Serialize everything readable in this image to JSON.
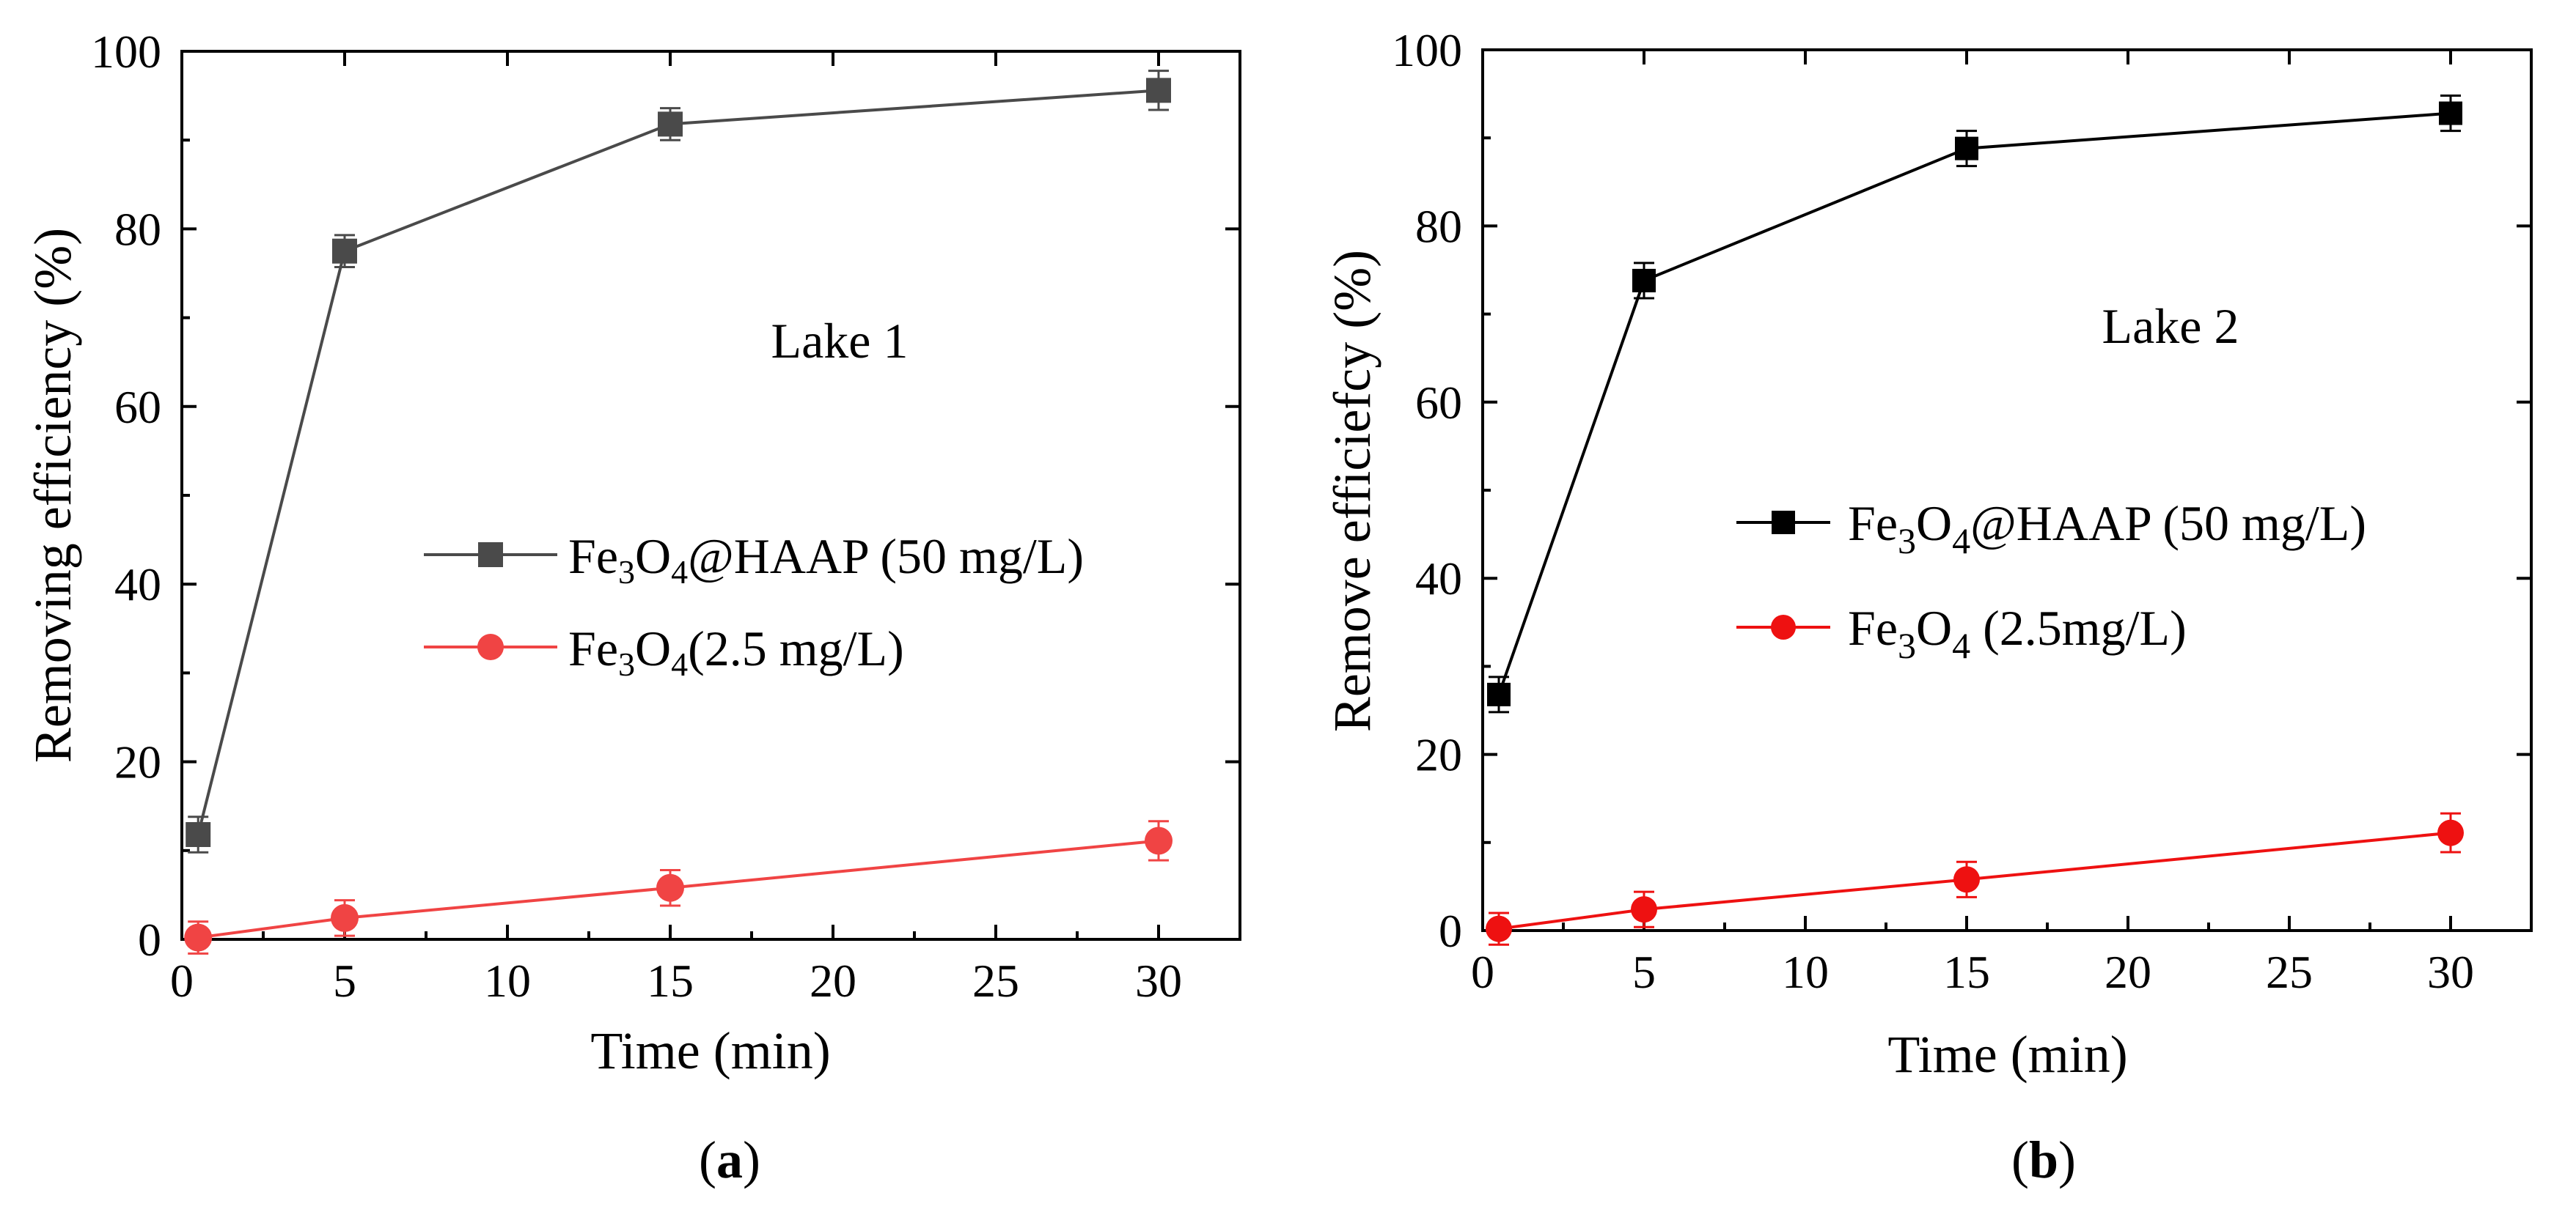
{
  "chart_data": [
    {
      "type": "line",
      "panel_label": "a",
      "annotation": "Lake 1",
      "xlabel": "Time (min)",
      "ylabel": "Removing efficiency (%)",
      "xlim": [
        0,
        32.5
      ],
      "ylim": [
        0,
        100
      ],
      "xticks": [
        0,
        5,
        10,
        15,
        20,
        25,
        30
      ],
      "yticks": [
        0,
        20,
        40,
        60,
        80,
        100
      ],
      "legend_position": "middle-right",
      "series": [
        {
          "name": "Fe3O4@HAAP (50 mg/L)",
          "legend_base": "Fe",
          "legend_sub1": "3",
          "legend_mid": "O",
          "legend_sub2": "4",
          "legend_rest": "@HAAP (50 mg/L)",
          "color": "#4a4a4a",
          "marker": "square",
          "x": [
            0.5,
            5,
            15,
            30
          ],
          "y": [
            11.8,
            77.5,
            91.8,
            95.6
          ],
          "err": [
            2.0,
            1.8,
            1.8,
            2.2
          ]
        },
        {
          "name": "Fe3O4(2.5 mg/L)",
          "legend_base": "Fe",
          "legend_sub1": "3",
          "legend_mid": "O",
          "legend_sub2": "4",
          "legend_rest": "(2.5 mg/L)",
          "color": "#f04444",
          "marker": "circle",
          "x": [
            0.5,
            5,
            15,
            30
          ],
          "y": [
            0.2,
            2.4,
            5.8,
            11.1
          ],
          "err": [
            1.8,
            2.0,
            2.0,
            2.2
          ]
        }
      ]
    },
    {
      "type": "line",
      "panel_label": "b",
      "annotation": "Lake 2",
      "xlabel": "Time (min)",
      "ylabel": "Remove efficiefcy (%)",
      "xlim": [
        0,
        32.5
      ],
      "ylim": [
        0,
        100
      ],
      "xticks": [
        0,
        5,
        10,
        15,
        20,
        25,
        30
      ],
      "yticks": [
        0,
        20,
        40,
        60,
        80,
        100
      ],
      "legend_position": "middle-right",
      "series": [
        {
          "name": "Fe3O4@HAAP (50 mg/L)",
          "legend_base": "Fe",
          "legend_sub1": "3",
          "legend_mid": "O",
          "legend_sub2": "4",
          "legend_rest": "@HAAP (50 mg/L)",
          "color": "#000000",
          "marker": "square",
          "x": [
            0.5,
            5,
            15,
            30
          ],
          "y": [
            26.8,
            73.8,
            88.8,
            92.8
          ],
          "err": [
            2.0,
            2.0,
            2.0,
            2.0
          ]
        },
        {
          "name": "Fe3O4 (2.5mg/L)",
          "legend_base": "Fe",
          "legend_sub1": "3",
          "legend_mid": "O",
          "legend_sub2": "4",
          "legend_rest": " (2.5mg/L)",
          "color": "#ee1111",
          "marker": "circle",
          "x": [
            0.5,
            5,
            15,
            30
          ],
          "y": [
            0.2,
            2.4,
            5.8,
            11.1
          ],
          "err": [
            1.8,
            2.0,
            2.0,
            2.2
          ]
        }
      ]
    }
  ]
}
